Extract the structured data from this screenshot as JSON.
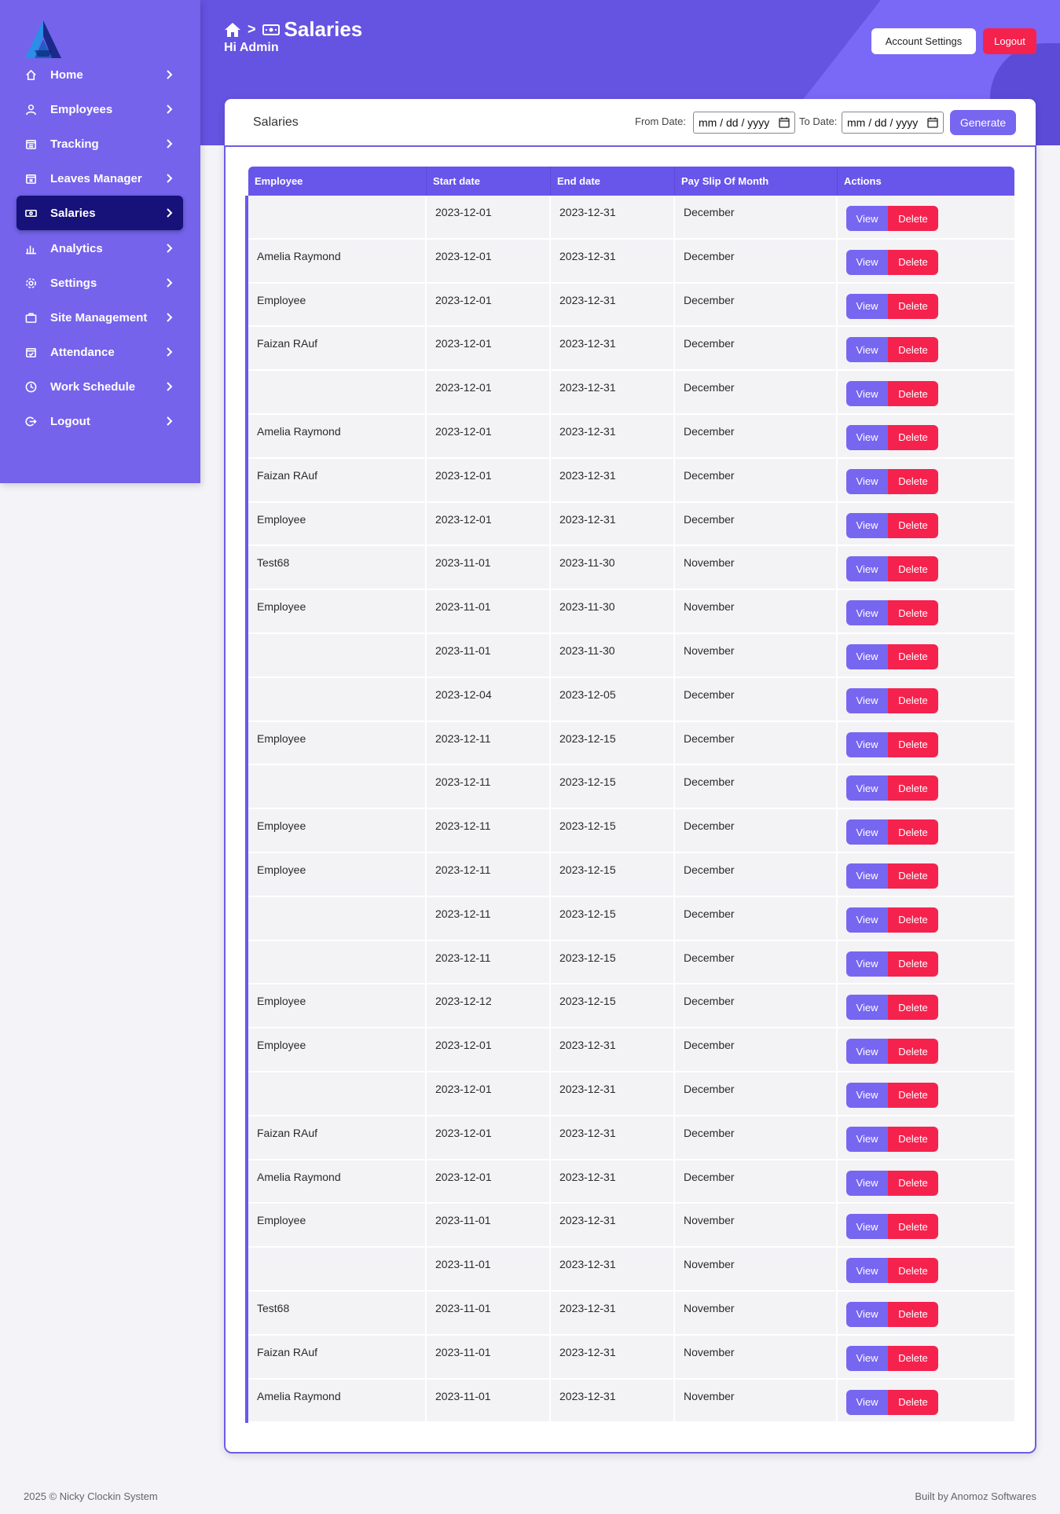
{
  "header": {
    "title": "Salaries",
    "greeting": "Hi Admin",
    "account_settings_label": "Account Settings",
    "logout_label": "Logout",
    "breadcrumb_separator": ">"
  },
  "sidebar": {
    "items": [
      {
        "label": "Home",
        "icon": "home-icon"
      },
      {
        "label": "Employees",
        "icon": "user-icon"
      },
      {
        "label": "Tracking",
        "icon": "calendar-icon"
      },
      {
        "label": "Leaves Manager",
        "icon": "calendar-x-icon"
      },
      {
        "label": "Salaries",
        "icon": "money-icon",
        "active": true
      },
      {
        "label": "Analytics",
        "icon": "bar-chart-icon"
      },
      {
        "label": "Settings",
        "icon": "gear-icon"
      },
      {
        "label": "Site Management",
        "icon": "briefcase-icon"
      },
      {
        "label": "Attendance",
        "icon": "calendar-check-icon"
      },
      {
        "label": "Work Schedule",
        "icon": "clock-icon"
      },
      {
        "label": "Logout",
        "icon": "logout-icon"
      }
    ]
  },
  "card": {
    "title": "Salaries",
    "from_label": "From Date:",
    "to_label": "To Date:",
    "date_placeholder": "mm / dd / yyyy",
    "generate_label": "Generate"
  },
  "table": {
    "columns": [
      "Employee",
      "Start date",
      "End date",
      "Pay Slip Of Month",
      "Actions"
    ],
    "view_label": "View",
    "delete_label": "Delete",
    "rows": [
      [
        "",
        "2023-12-01",
        "2023-12-31",
        "December"
      ],
      [
        "Amelia Raymond",
        "2023-12-01",
        "2023-12-31",
        "December"
      ],
      [
        "Employee",
        "2023-12-01",
        "2023-12-31",
        "December"
      ],
      [
        "Faizan RAuf",
        "2023-12-01",
        "2023-12-31",
        "December"
      ],
      [
        "",
        "2023-12-01",
        "2023-12-31",
        "December"
      ],
      [
        "Amelia Raymond",
        "2023-12-01",
        "2023-12-31",
        "December"
      ],
      [
        "Faizan RAuf",
        "2023-12-01",
        "2023-12-31",
        "December"
      ],
      [
        "Employee",
        "2023-12-01",
        "2023-12-31",
        "December"
      ],
      [
        "Test68",
        "2023-11-01",
        "2023-11-30",
        "November"
      ],
      [
        "Employee",
        "2023-11-01",
        "2023-11-30",
        "November"
      ],
      [
        "",
        "2023-11-01",
        "2023-11-30",
        "November"
      ],
      [
        "",
        "2023-12-04",
        "2023-12-05",
        "December"
      ],
      [
        "Employee",
        "2023-12-11",
        "2023-12-15",
        "December"
      ],
      [
        "",
        "2023-12-11",
        "2023-12-15",
        "December"
      ],
      [
        "Employee",
        "2023-12-11",
        "2023-12-15",
        "December"
      ],
      [
        "Employee",
        "2023-12-11",
        "2023-12-15",
        "December"
      ],
      [
        "",
        "2023-12-11",
        "2023-12-15",
        "December"
      ],
      [
        "",
        "2023-12-11",
        "2023-12-15",
        "December"
      ],
      [
        "Employee",
        "2023-12-12",
        "2023-12-15",
        "December"
      ],
      [
        "Employee",
        "2023-12-01",
        "2023-12-31",
        "December"
      ],
      [
        "",
        "2023-12-01",
        "2023-12-31",
        "December"
      ],
      [
        "Faizan RAuf",
        "2023-12-01",
        "2023-12-31",
        "December"
      ],
      [
        "Amelia Raymond",
        "2023-12-01",
        "2023-12-31",
        "December"
      ],
      [
        "Employee",
        "2023-11-01",
        "2023-12-31",
        "November"
      ],
      [
        "",
        "2023-11-01",
        "2023-12-31",
        "November"
      ],
      [
        "Test68",
        "2023-11-01",
        "2023-12-31",
        "November"
      ],
      [
        "Faizan RAuf",
        "2023-11-01",
        "2023-12-31",
        "November"
      ],
      [
        "Amelia Raymond",
        "2023-11-01",
        "2023-12-31",
        "November"
      ]
    ]
  },
  "footer": {
    "left": "2025  © Nicky Clockin System",
    "right": "Built by Anomoz Softwares"
  },
  "colors": {
    "primary": "#6553e1",
    "sidebar": "#7563ec",
    "active_nav": "#17117a",
    "danger": "#f5224e",
    "view_button": "#7766f0"
  }
}
